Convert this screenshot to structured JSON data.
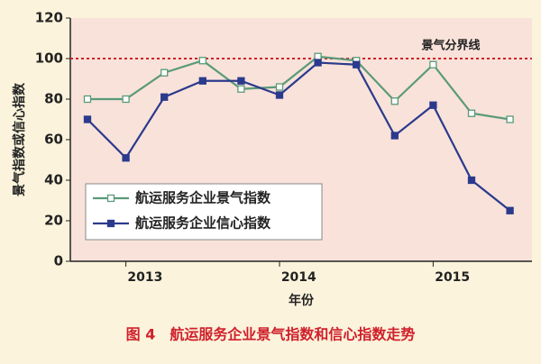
{
  "chart_data": {
    "type": "line",
    "title": "图 4　航运服务企业景气指数和信心指数走势",
    "x_label": "年份",
    "y_label": "景气指数或信心指数",
    "categories": [
      null,
      null,
      null,
      null,
      null,
      null,
      null,
      null,
      null,
      null,
      null,
      null
    ],
    "year_labels": [
      "2013",
      "2014",
      "2015"
    ],
    "series": [
      {
        "name": "航运服务企业景气指数",
        "color": "#5a9a78",
        "marker": "open-square",
        "values": [
          80,
          80,
          93,
          99,
          85,
          86,
          101,
          99,
          79,
          97,
          73,
          70
        ]
      },
      {
        "name": "航运服务企业信心指数",
        "color": "#2b3a8c",
        "marker": "filled-square",
        "values": [
          70,
          51,
          81,
          89,
          89,
          82,
          98,
          97,
          62,
          77,
          40,
          25
        ]
      }
    ],
    "reference_line": {
      "value": 100,
      "label": "景气分界线",
      "color": "#d0202a"
    },
    "ylim": [
      0,
      120
    ],
    "yticks": [
      0,
      20,
      40,
      60,
      80,
      100,
      120
    ]
  }
}
